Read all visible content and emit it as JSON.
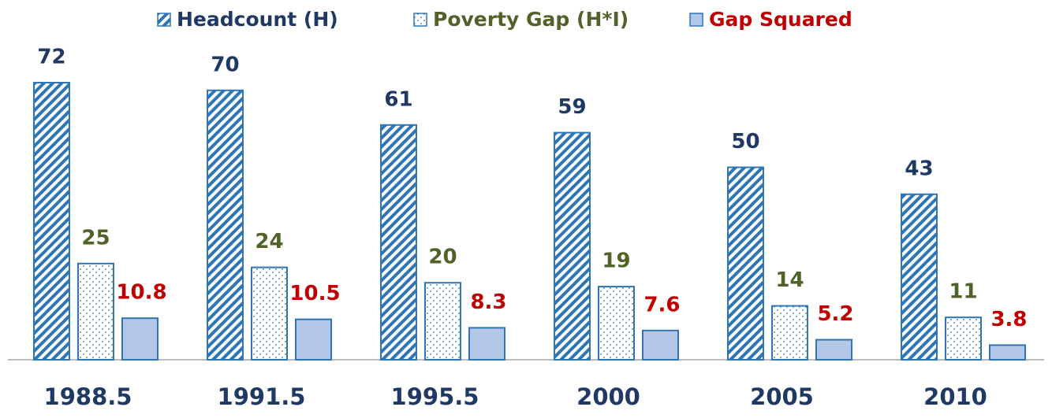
{
  "chart_data": {
    "type": "bar",
    "categories": [
      "1988.5",
      "1991.5",
      "1995.5",
      "2000",
      "2005",
      "2010"
    ],
    "series": [
      {
        "name": "Headcount (H)",
        "color": "#2e75b6",
        "pattern": "hatch",
        "label_color": "#1f3864",
        "values": [
          72,
          70,
          61,
          59,
          50,
          43
        ]
      },
      {
        "name": "Poverty Gap (H*I)",
        "color": "#2e75b6",
        "pattern": "dots",
        "label_color": "#4f6228",
        "values": [
          25,
          24,
          20,
          19,
          14,
          11
        ]
      },
      {
        "name": "Gap Squared",
        "color": "#b4c7e7",
        "pattern": "solid",
        "label_color": "#c00000",
        "values": [
          10.8,
          10.5,
          8.3,
          7.6,
          5.2,
          3.8
        ]
      }
    ],
    "legend": "top"
  }
}
